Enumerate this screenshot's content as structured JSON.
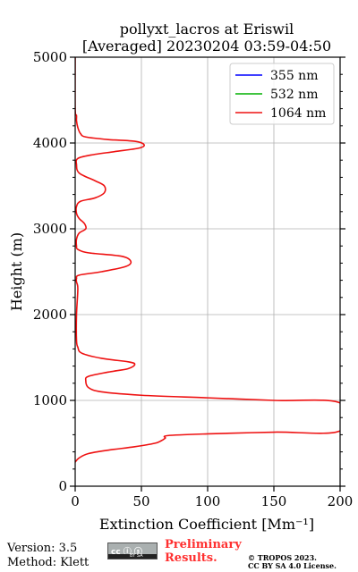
{
  "chart_data": {
    "type": "line",
    "title": "pollyxt_lacros at Eriswil",
    "subtitle": "[Averaged] 20230204 03:59-04:50",
    "xlabel": "Extinction Coefficient [Mm⁻¹]",
    "ylabel": "Height (m)",
    "xlim": [
      0,
      200
    ],
    "ylim": [
      0,
      5000
    ],
    "x_ticks": [
      "0",
      "50",
      "100",
      "150",
      "200"
    ],
    "y_ticks": [
      "0",
      "1000",
      "2000",
      "3000",
      "4000",
      "5000"
    ],
    "grid": true,
    "legend_position": "top-right",
    "series": [
      {
        "name": "355 nm",
        "color": "#0000ff",
        "x": [],
        "y": []
      },
      {
        "name": "532 nm",
        "color": "#00b000",
        "x": [],
        "y": []
      },
      {
        "name": "1064 nm",
        "color": "#ee1111",
        "x": [
          0,
          3,
          10,
          25,
          45,
          60,
          65,
          68,
          70,
          100,
          150,
          200,
          200,
          150,
          100,
          50,
          20,
          10,
          8,
          10,
          25,
          40,
          45,
          40,
          20,
          5,
          2,
          1,
          1,
          2,
          1,
          1,
          3,
          20,
          38,
          42,
          35,
          10,
          2,
          1,
          1,
          3,
          8,
          7,
          3,
          1,
          1,
          4,
          15,
          22,
          22,
          15,
          3,
          1,
          2,
          12,
          30,
          48,
          52,
          45,
          25,
          8,
          4,
          2,
          1,
          1,
          0,
          0
        ],
        "y": [
          280,
          330,
          380,
          420,
          460,
          500,
          530,
          560,
          590,
          610,
          630,
          645,
          970,
          1000,
          1030,
          1060,
          1100,
          1150,
          1230,
          1280,
          1330,
          1370,
          1420,
          1450,
          1490,
          1550,
          1620,
          1700,
          2000,
          2300,
          2380,
          2420,
          2460,
          2500,
          2560,
          2620,
          2680,
          2720,
          2760,
          2800,
          2880,
          2950,
          3000,
          3060,
          3120,
          3180,
          3260,
          3320,
          3360,
          3420,
          3500,
          3560,
          3650,
          3750,
          3820,
          3860,
          3900,
          3940,
          3980,
          4020,
          4040,
          4070,
          4110,
          4180,
          4260,
          4320,
          4400,
          5000
        ]
      }
    ]
  },
  "footer": {
    "version": "Version: 3.5",
    "method": "Method: Klett",
    "license_badge": "cc ⓘ ⓢ",
    "license_badge_sub": "BY SA",
    "preliminary_line1": "Preliminary",
    "preliminary_line2": "Results.",
    "copyright_line1": "© TROPOS 2023.",
    "copyright_line2": "CC BY SA 4.0 License."
  }
}
